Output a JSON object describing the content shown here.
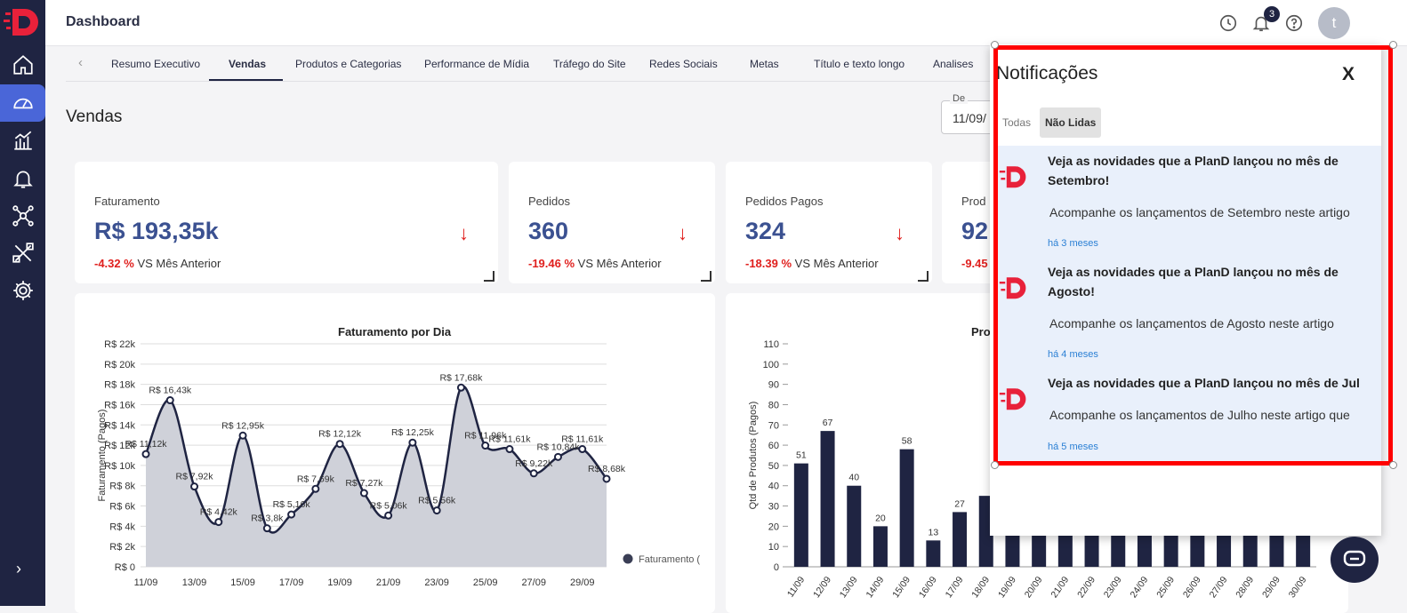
{
  "header": {
    "title": "Dashboard",
    "notification_count": "3",
    "avatar_initial": "t"
  },
  "tabs": {
    "items": [
      "Resumo Executivo",
      "Vendas",
      "Produtos e Categorias",
      "Performance de Mídia",
      "Tráfego do Site",
      "Redes Sociais",
      "Metas",
      "Título e texto longo",
      "Analises"
    ],
    "active": "Vendas"
  },
  "page": {
    "title": "Vendas",
    "date_label": "De",
    "date_value": "11/09/"
  },
  "kpis": [
    {
      "label": "Faturamento",
      "value": "R$ 193,35k",
      "delta": "-4.32 %",
      "compare": "VS Mês Anterior"
    },
    {
      "label": "Pedidos",
      "value": "360",
      "delta": "-19.46 %",
      "compare": "VS Mês Anterior"
    },
    {
      "label": "Pedidos Pagos",
      "value": "324",
      "delta": "-18.39 %",
      "compare": "VS Mês Anterior"
    },
    {
      "label": "Prod",
      "value": "92",
      "delta": "-9.45",
      "compare": ""
    }
  ],
  "charts": {
    "faturamento_title": "Faturamento por Dia",
    "faturamento_ylabel": "Faturamento (Pagos)",
    "faturamento_legend": "Faturamento (",
    "produtos_title": "Pro",
    "produtos_ylabel": "Qtd de Produtos (Pagos)"
  },
  "chart_data": [
    {
      "type": "area",
      "title": "Faturamento por Dia",
      "ylabel": "Faturamento (Pagos)",
      "ylim": [
        0,
        22000
      ],
      "yticks": [
        "R$ 0",
        "R$ 2k",
        "R$ 4k",
        "R$ 6k",
        "R$ 8k",
        "R$ 10k",
        "R$ 12k",
        "R$ 14k",
        "R$ 16k",
        "R$ 18k",
        "R$ 20k",
        "R$ 22k"
      ],
      "x": [
        "11/09",
        "12/09",
        "13/09",
        "14/09",
        "15/09",
        "16/09",
        "17/09",
        "18/09",
        "19/09",
        "20/09",
        "21/09",
        "22/09",
        "23/09",
        "24/09",
        "25/09",
        "26/09",
        "27/09",
        "28/09",
        "29/09",
        "30/09"
      ],
      "xticks": [
        "11/09",
        "13/09",
        "15/09",
        "17/09",
        "19/09",
        "21/09",
        "23/09",
        "25/09",
        "27/09",
        "29/09"
      ],
      "values": [
        11120,
        16430,
        7920,
        4420,
        12950,
        3800,
        5160,
        7690,
        12120,
        7270,
        5060,
        12250,
        5560,
        17680,
        11960,
        11610,
        9220,
        10840,
        11610,
        8680
      ],
      "labels": [
        "R$ 11,12k",
        "R$ 16,43k",
        "R$ 7,92k",
        "R$ 4,42k",
        "R$ 12,95k",
        "R$ 3,8k",
        "R$ 5,16k",
        "R$ 7,69k",
        "R$ 12,12k",
        "R$ 7,27k",
        "R$ 5,06k",
        "R$ 12,25k",
        "R$ 5,56k",
        "R$ 17,68k",
        "R$ 11,96k",
        "R$ 11,61k",
        "R$ 9,22k",
        "R$ 10,84k",
        "R$ 11,61k",
        "R$ 8,68k"
      ],
      "legend": "Faturamento ("
    },
    {
      "type": "bar",
      "title": "Pro",
      "ylabel": "Qtd de Produtos (Pagos)",
      "ylim": [
        0,
        110
      ],
      "yticks": [
        0,
        10,
        20,
        30,
        40,
        50,
        60,
        70,
        80,
        90,
        100,
        110
      ],
      "categories": [
        "11/09",
        "12/09",
        "13/09",
        "14/09",
        "15/09",
        "16/09",
        "17/09",
        "18/09",
        "19/09",
        "20/09",
        "21/09",
        "22/09",
        "23/09",
        "24/09",
        "25/09",
        "26/09",
        "27/09",
        "28/09",
        "29/09",
        "30/09"
      ],
      "values": [
        51,
        67,
        40,
        20,
        58,
        13,
        27,
        35,
        28,
        25,
        30,
        32,
        26,
        40,
        29,
        31,
        24,
        27,
        26,
        22
      ],
      "labels": [
        "51",
        "67",
        "40",
        "20",
        "58",
        "13",
        "27",
        "",
        "",
        "",
        "",
        "",
        "",
        "",
        "",
        "",
        "",
        "",
        "",
        ""
      ]
    }
  ],
  "notifications": {
    "title": "Notificações",
    "close_label": "X",
    "tab_all": "Todas",
    "tab_unread": "Não Lidas",
    "items": [
      {
        "title": "Veja as novidades que a PlanD lançou no mês de Setembro!",
        "body": "Acompanhe os lançamentos de Setembro neste artigo que preparamos para você:",
        "time": "há 3 meses"
      },
      {
        "title": "Veja as novidades que a PlanD lançou no mês de Agosto!",
        "body": "Acompanhe os lançamentos de Agosto neste artigo que preparamos para você:",
        "time": "há 4 meses"
      },
      {
        "title": "Veja as novidades que a PlanD lançou no mês de Jul",
        "body": "Acompanhe os lançamentos de Julho neste artigo que preparamos para você:",
        "time": "há 5 meses"
      }
    ]
  },
  "colors": {
    "sidebar": "#1f2442",
    "accent": "#4a66d8",
    "kpi_value": "#3b5191",
    "negative": "#e0201e",
    "highlight": "#ff0000"
  }
}
